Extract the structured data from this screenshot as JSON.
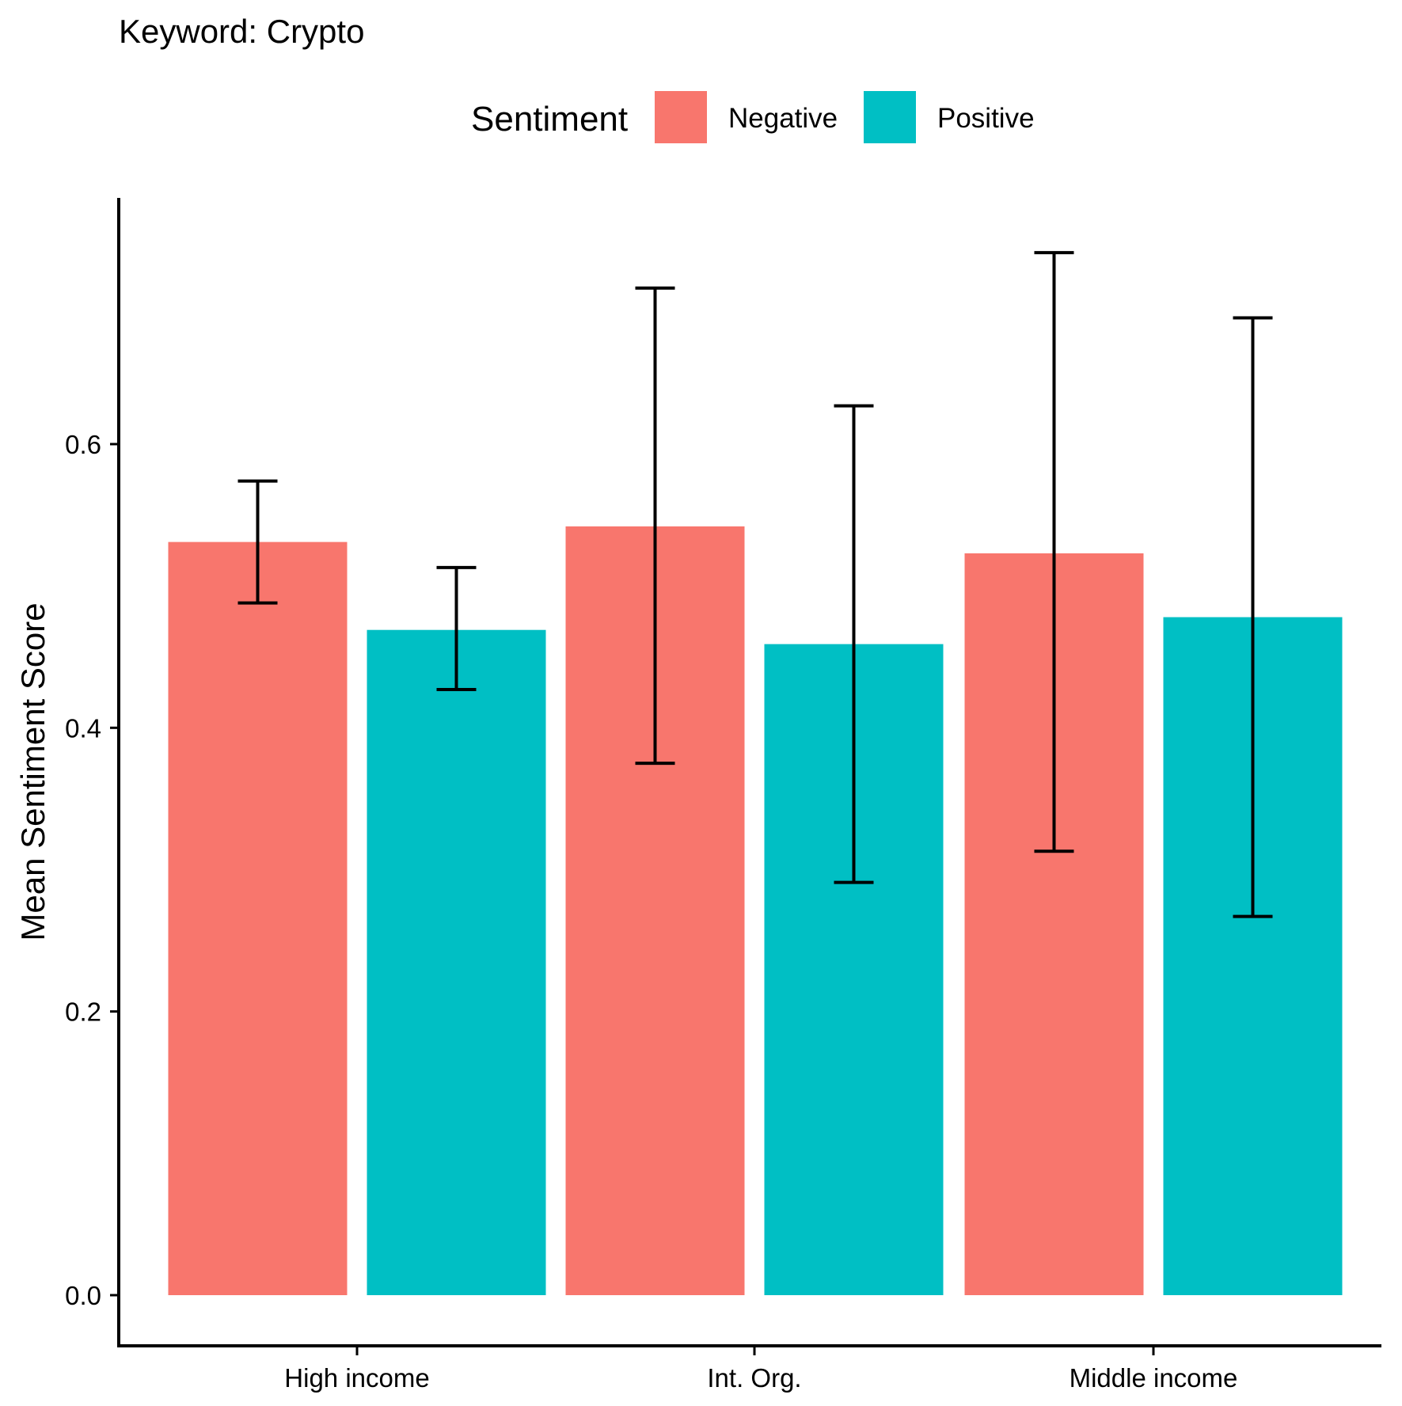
{
  "chart_data": {
    "type": "bar",
    "title": "Keyword: Crypto",
    "xlabel": "",
    "ylabel": "Mean Sentiment Score",
    "categories": [
      "High income",
      "Int. Org.",
      "Middle income"
    ],
    "series": [
      {
        "name": "Negative",
        "color": "#F8766D",
        "values": [
          0.531,
          0.542,
          0.523
        ],
        "error_low": [
          0.488,
          0.375,
          0.313
        ],
        "error_high": [
          0.574,
          0.71,
          0.735
        ]
      },
      {
        "name": "Positive",
        "color": "#00BFC4",
        "values": [
          0.469,
          0.459,
          0.478
        ],
        "error_low": [
          0.427,
          0.291,
          0.267
        ],
        "error_high": [
          0.513,
          0.627,
          0.689
        ]
      }
    ],
    "yticks": [
      0.0,
      0.2,
      0.4,
      0.6
    ],
    "ytick_labels": [
      "0.0",
      "0.2",
      "0.4",
      "0.6"
    ],
    "ylim": [
      -0.035,
      0.76
    ],
    "grid": false,
    "legend": {
      "title": "Sentiment",
      "position": "top",
      "entries": [
        "Negative",
        "Positive"
      ]
    }
  }
}
